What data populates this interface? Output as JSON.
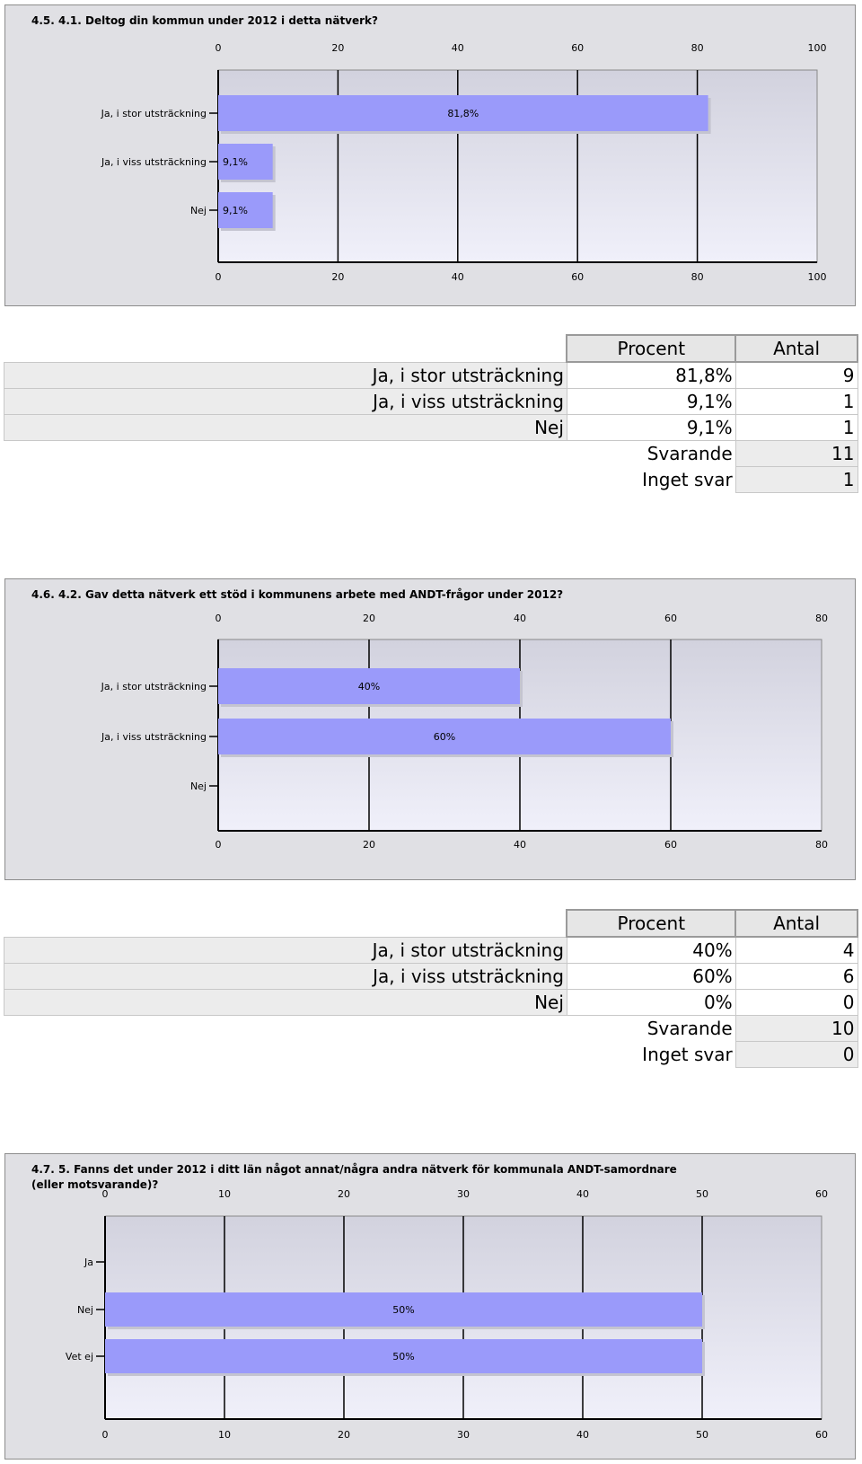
{
  "sections": [
    {
      "title": "4.5. 4.1. Deltog din kommun under 2012 i detta nätverk?",
      "chart_data": {
        "type": "bar",
        "orientation": "horizontal",
        "categories": [
          "Ja, i stor utsträckning",
          "Ja, i viss utsträckning",
          "Nej"
        ],
        "values": [
          81.8,
          9.1,
          9.1
        ],
        "value_labels": [
          "81,8%",
          "9,1%",
          "9,1%"
        ],
        "xlim": [
          0,
          100
        ],
        "ticks": [
          0,
          20,
          40,
          60,
          80,
          100
        ],
        "grid": true,
        "bar_color": "#9a9afa"
      },
      "table": {
        "headers": [
          "Procent",
          "Antal"
        ],
        "rows": [
          {
            "label": "Ja, i stor utsträckning",
            "percent": "81,8%",
            "count": "9"
          },
          {
            "label": "Ja, i viss utsträckning",
            "percent": "9,1%",
            "count": "1"
          },
          {
            "label": "Nej",
            "percent": "9,1%",
            "count": "1"
          }
        ],
        "summary": [
          {
            "label": "Svarande",
            "value": "11"
          },
          {
            "label": "Inget svar",
            "value": "1"
          }
        ]
      }
    },
    {
      "title": "4.6. 4.2. Gav detta nätverk ett stöd i kommunens arbete med ANDT-frågor under 2012?",
      "chart_data": {
        "type": "bar",
        "orientation": "horizontal",
        "categories": [
          "Ja, i stor utsträckning",
          "Ja, i viss utsträckning",
          "Nej"
        ],
        "values": [
          40,
          60,
          0
        ],
        "value_labels": [
          "40%",
          "60%",
          ""
        ],
        "xlim": [
          0,
          80
        ],
        "ticks": [
          0,
          20,
          40,
          60,
          80
        ],
        "grid": true,
        "bar_color": "#9a9afa"
      },
      "table": {
        "headers": [
          "Procent",
          "Antal"
        ],
        "rows": [
          {
            "label": "Ja, i stor utsträckning",
            "percent": "40%",
            "count": "4"
          },
          {
            "label": "Ja, i viss utsträckning",
            "percent": "60%",
            "count": "6"
          },
          {
            "label": "Nej",
            "percent": "0%",
            "count": "0"
          }
        ],
        "summary": [
          {
            "label": "Svarande",
            "value": "10"
          },
          {
            "label": "Inget svar",
            "value": "0"
          }
        ]
      }
    },
    {
      "title": "4.7. 5. Fanns det under 2012 i ditt län något annat/några andra nätverk för kommunala ANDT-samordnare\n(eller motsvarande)?",
      "chart_data": {
        "type": "bar",
        "orientation": "horizontal",
        "categories": [
          "Ja",
          "Nej",
          "Vet ej"
        ],
        "values": [
          0,
          50,
          50
        ],
        "value_labels": [
          "",
          "50%",
          "50%"
        ],
        "xlim": [
          0,
          60
        ],
        "ticks": [
          0,
          10,
          20,
          30,
          40,
          50,
          60
        ],
        "grid": true,
        "bar_color": "#9a9afa"
      }
    }
  ]
}
